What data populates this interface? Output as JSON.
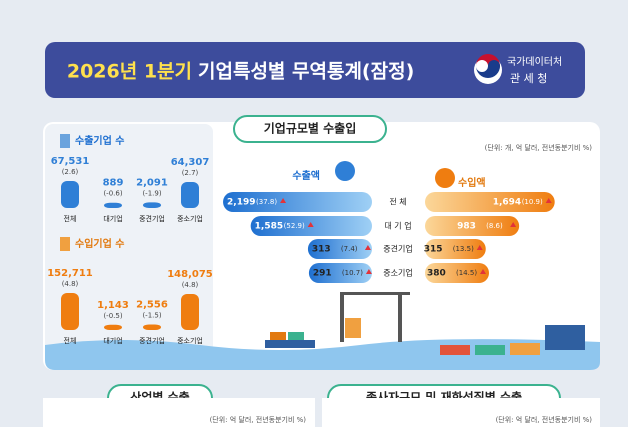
{
  "header": {
    "title_highlight": "2026년 1분기",
    "title": "기업특성별 무역통계(잠정)",
    "logo_top": "국가데이터처",
    "logo_bottom": "관 세 청"
  },
  "main": {
    "tab": "기업규모별 수출입",
    "unit": "(단위: 개, 억 달러, 전년동분기비 %)",
    "exporters": {
      "title": "수출기업 수",
      "items": [
        {
          "category": "전체",
          "value": 67531,
          "value_label": "67,531",
          "change": "(2.6)"
        },
        {
          "category": "대기업",
          "value": 889,
          "value_label": "889",
          "change": "(-0.6)"
        },
        {
          "category": "중견기업",
          "value": 2091,
          "value_label": "2,091",
          "change": "(-1.9)"
        },
        {
          "category": "중소기업",
          "value": 64307,
          "value_label": "64,307",
          "change": "(2.7)"
        }
      ]
    },
    "importers": {
      "title": "수입기업 수",
      "items": [
        {
          "category": "전체",
          "value": 152711,
          "value_label": "152,711",
          "change": "(4.8)"
        },
        {
          "category": "대기업",
          "value": 1143,
          "value_label": "1,143",
          "change": "(-0.5)"
        },
        {
          "category": "중견기업",
          "value": 2556,
          "value_label": "2,556",
          "change": "(-1.5)"
        },
        {
          "category": "중소기업",
          "value": 148075,
          "value_label": "148,075",
          "change": "(4.8)"
        }
      ]
    },
    "categories": [
      "전 체",
      "대 기 업",
      "중견기업",
      "중소기업"
    ],
    "exports": {
      "title": "수출액",
      "items": [
        {
          "value": 2199,
          "value_label": "2,199",
          "change": "(37.8)"
        },
        {
          "value": 1585,
          "value_label": "1,585",
          "change": "(52.9)"
        },
        {
          "value": 313,
          "value_label": "313",
          "change": "(7.4)"
        },
        {
          "value": 291,
          "value_label": "291",
          "change": "(10.7)"
        }
      ]
    },
    "imports": {
      "title": "수입액",
      "items": [
        {
          "value": 1694,
          "value_label": "1,694",
          "change": "(10.9)"
        },
        {
          "value": 983,
          "value_label": "983",
          "change": "(8.6)"
        },
        {
          "value": 315,
          "value_label": "315",
          "change": "(13.5)"
        },
        {
          "value": 380,
          "value_label": "380",
          "change": "(14.5)"
        }
      ]
    }
  },
  "sections": [
    {
      "tab": "산업별 수출",
      "unit": "(단위: 억 달러, 전년동분기비 %)"
    },
    {
      "tab": "종사자규모 및 재화성질별 수출",
      "unit": "(단위: 억 달러, 전년동분기비 %)"
    }
  ]
}
